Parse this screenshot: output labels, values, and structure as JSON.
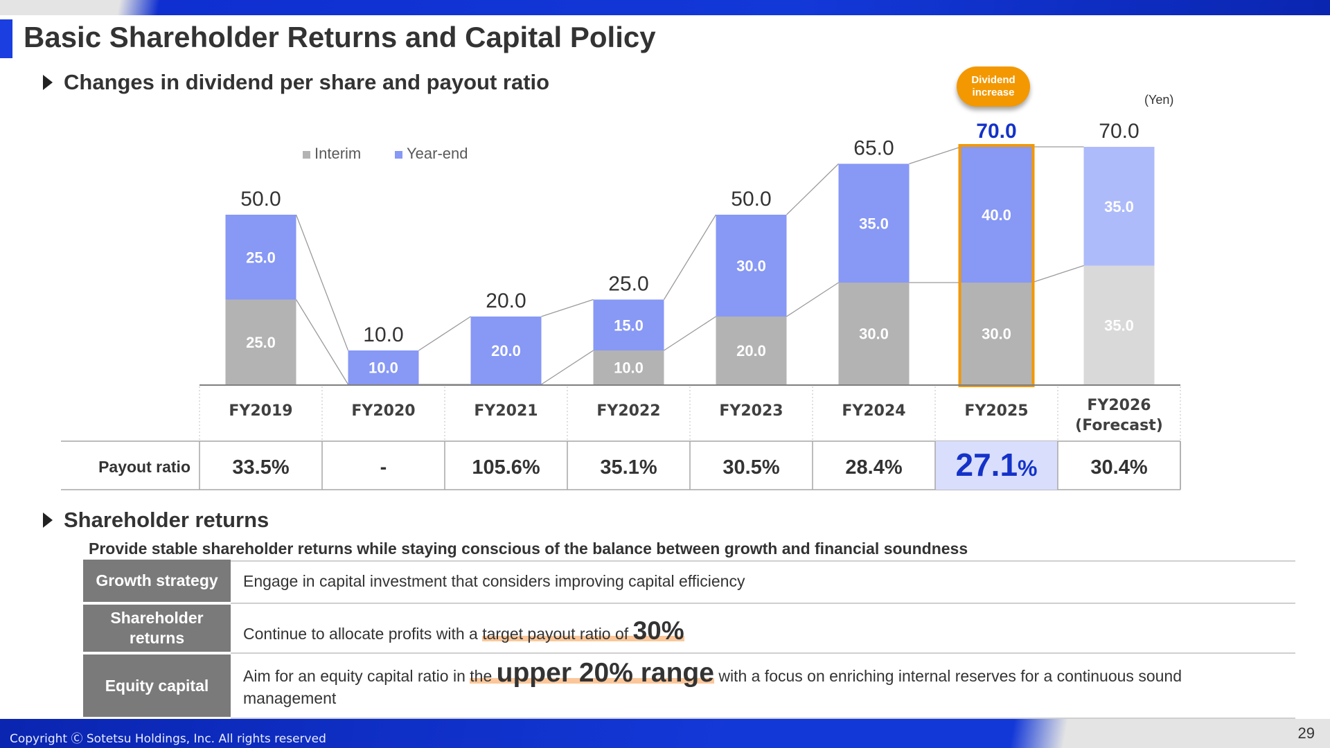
{
  "page": {
    "title": "Basic Shareholder Returns and Capital Policy",
    "copyright": "Copyright Ⓒ Sotetsu Holdings, Inc. All rights reserved",
    "page_number": "29",
    "colors": {
      "brand_blue": "#1a3ee0",
      "interim": "#b3b3b3",
      "year_end": "#8798f5",
      "forecast_interim": "#d9d9d9",
      "forecast_year_end": "#aebbfa",
      "highlight_border": "#f39800",
      "highlight_text": "#1432c8"
    }
  },
  "dividend_section": {
    "heading": "Changes in dividend per share and payout ratio",
    "unit": "(Yen)",
    "callout": {
      "line1": "Dividend",
      "line2": "increase"
    }
  },
  "chart_data": {
    "type": "bar",
    "stacked": true,
    "categories": [
      "FY2019",
      "FY2020",
      "FY2021",
      "FY2022",
      "FY2023",
      "FY2024",
      "FY2025",
      "FY2026\n(Forecast)"
    ],
    "series": [
      {
        "name": "Interim",
        "values": [
          25.0,
          0,
          0,
          10.0,
          20.0,
          30.0,
          30.0,
          35.0
        ]
      },
      {
        "name": "Year-end",
        "values": [
          25.0,
          10.0,
          20.0,
          15.0,
          30.0,
          35.0,
          40.0,
          35.0
        ]
      }
    ],
    "totals": [
      "50.0",
      "10.0",
      "20.0",
      "25.0",
      "50.0",
      "65.0",
      "70.0",
      "70.0"
    ],
    "segment_labels": {
      "Interim": [
        "25.0",
        "",
        "",
        "10.0",
        "20.0",
        "30.0",
        "30.0",
        "35.0"
      ],
      "Year-end": [
        "25.0",
        "10.0",
        "20.0",
        "15.0",
        "30.0",
        "35.0",
        "40.0",
        "35.0"
      ]
    },
    "highlight_category": "FY2025",
    "forecast_category": "FY2026\n(Forecast)",
    "legend": {
      "placement": "top-left",
      "entries": [
        "Interim",
        "Year-end"
      ]
    },
    "ylim": [
      0,
      80
    ],
    "payout_ratio": {
      "label": "Payout ratio",
      "values": [
        "33.5%",
        "-",
        "105.6%",
        "35.1%",
        "30.5%",
        "28.4%",
        "27.1%",
        "30.4%"
      ]
    }
  },
  "returns_section": {
    "heading": "Shareholder returns",
    "lead": "Provide stable shareholder returns while staying conscious of the balance between growth and financial soundness",
    "rows": [
      {
        "head": "Growth strategy",
        "text": "Engage in capital investment that considers improving capital efficiency"
      },
      {
        "head": "Shareholder returns",
        "pre": "Continue to allocate profits with a ",
        "hl_small": "target payout ratio of ",
        "hl_big": "30%"
      },
      {
        "head": "Equity capital",
        "pre": "Aim for an equity capital ratio in ",
        "hl_small": "the ",
        "hl_big": "upper 20% range",
        "post": " with a focus on enriching internal reserves for a continuous sound management"
      }
    ]
  }
}
